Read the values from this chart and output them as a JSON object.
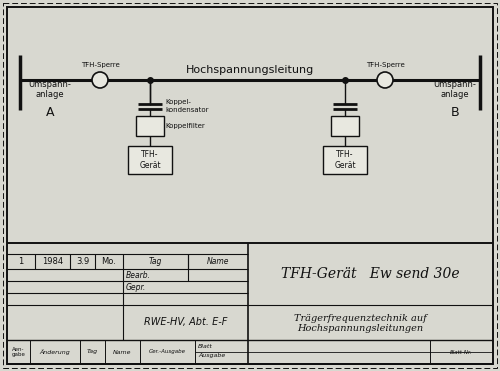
{
  "bg_color": "#d8d8d0",
  "diagram_bg": "#e8e8e0",
  "line_color": "#111111",
  "title_main": "TFH-Gerät   Ew send 30e",
  "title_sub1": "Trägerfrequenztechnik auf",
  "title_sub2": "Hochspannungsleitungen",
  "hochspannung_label": "Hochspannungsleitung",
  "tfh_sperre_left": "TFH-Sperre",
  "tfh_sperre_right": "TFH-Sperre",
  "umspann_left1": "Umspann-",
  "umspann_left2": "anlage",
  "umspann_left3": "A",
  "umspann_right1": "Umspann-",
  "umspann_right2": "anlage",
  "umspann_right3": "B",
  "koppel_kond": "Koppel-\nkondensator",
  "koppel_filter": "Koppelfilter",
  "tfh_gerat_label": "TFH-\nGerät",
  "row1_col1": "1",
  "row1_col2": "1984",
  "row1_col3": "3.9",
  "row1_col4": "Mo.",
  "tag_label": "Tag",
  "name_label": "Name",
  "bearb_label": "Bearb.",
  "gepr_label": "Gepr.",
  "rwe_label": "RWE-HV, Abt. E-F",
  "ger_ausgabe": "Ger.-Ausgabe",
  "blatt_label": "Blatt",
  "ausgabe_label": "Ausgabe",
  "blattnr_label": "Blatt-Nr.",
  "aen_label": "Aen-\ngabe",
  "aenderung_label": "Änderung"
}
